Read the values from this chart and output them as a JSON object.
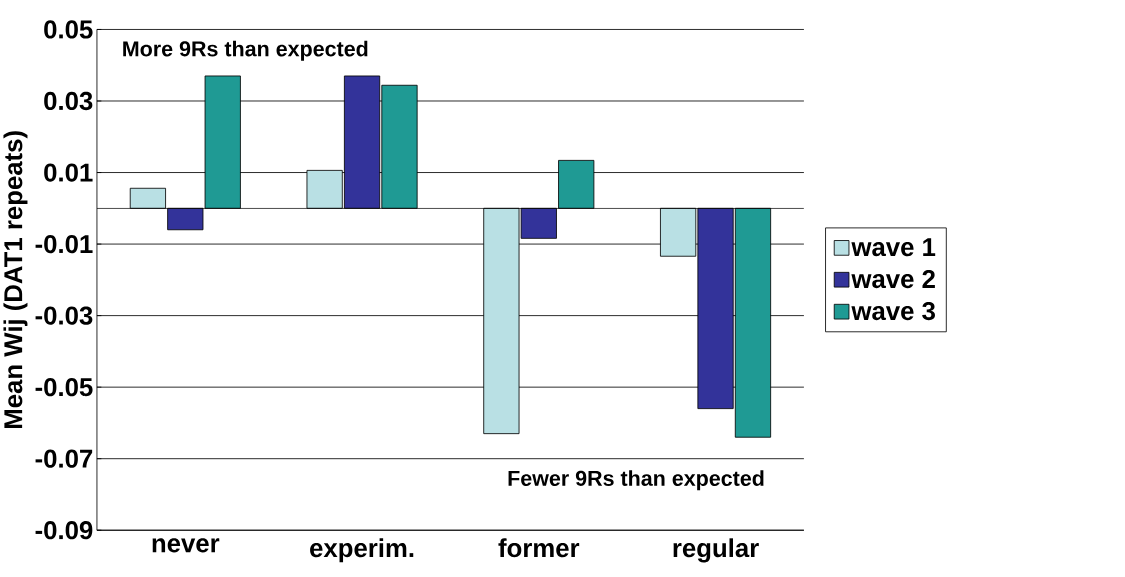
{
  "chart_data": {
    "type": "bar",
    "ylabel": "Mean Wij (DAT1 repeats)",
    "categories": [
      "never",
      "experim.",
      "former",
      "regular"
    ],
    "series": [
      {
        "name": "wave 1",
        "color": "#b9e0e4",
        "values": [
          0.0056,
          0.0106,
          -0.063,
          -0.0134
        ]
      },
      {
        "name": "wave 2",
        "color": "#33339a",
        "values": [
          -0.006,
          0.037,
          -0.0084,
          -0.056
        ]
      },
      {
        "name": "wave 3",
        "color": "#1f9a94",
        "values": [
          0.037,
          0.0344,
          0.0134,
          -0.064
        ]
      }
    ],
    "ylim": [
      -0.09,
      0.05
    ],
    "yticks": [
      -0.09,
      -0.07,
      -0.05,
      -0.03,
      -0.01,
      0.01,
      0.03,
      0.05
    ],
    "grid": "y",
    "legend": "right",
    "annotations": [
      "More 9Rs than expected",
      "Fewer 9Rs than expected"
    ]
  }
}
